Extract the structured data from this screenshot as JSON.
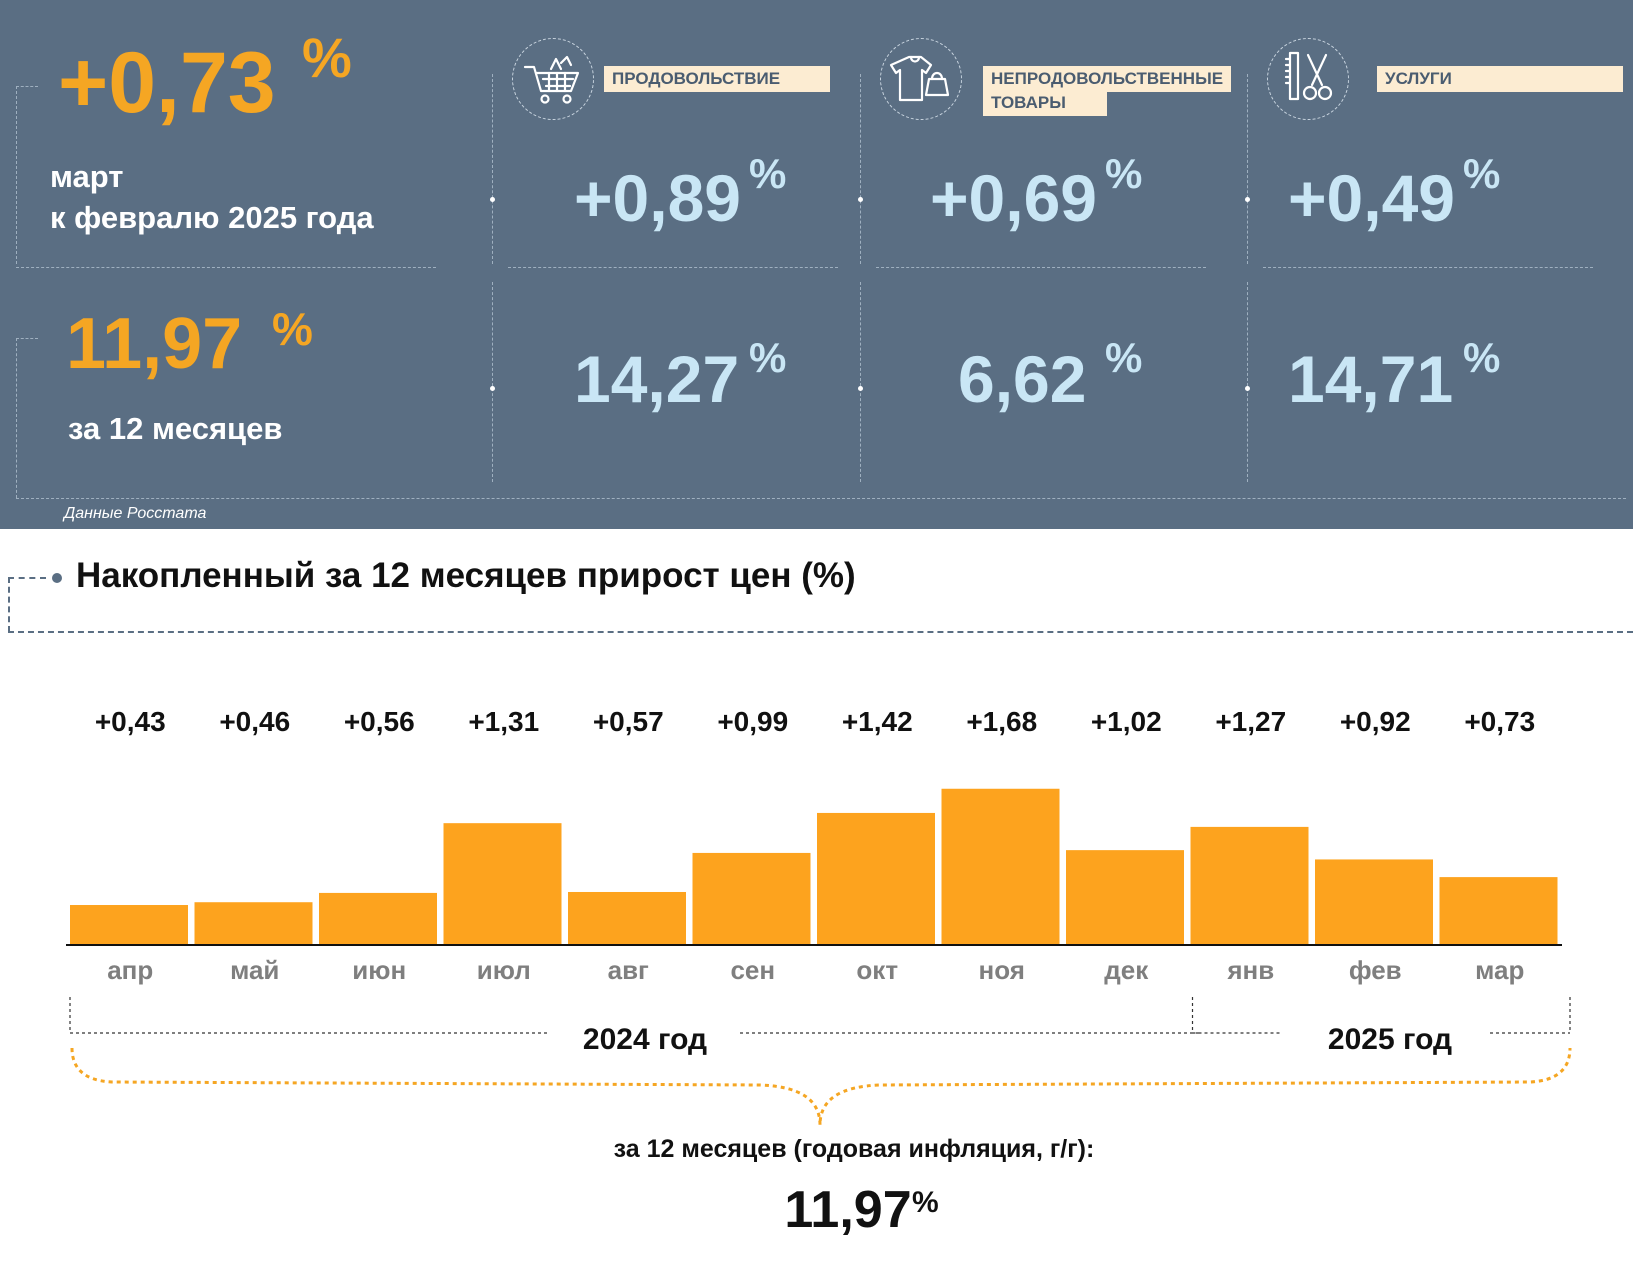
{
  "header": {
    "monthly": {
      "value": "+0,73",
      "unit": "%",
      "period_line1": "март",
      "period_line2": "к февралю 2025 года"
    },
    "annual": {
      "value": "11,97",
      "unit": "%",
      "period": "за 12 месяцев"
    },
    "source": "Данные Росстата"
  },
  "categories": [
    {
      "label": "ПРОДОВОЛЬСТВИЕ",
      "icon": "shopping-cart-icon",
      "monthly": "+0,89",
      "annual": "14,27",
      "unit": "%"
    },
    {
      "label_line1": "НЕПРОДОВОЛЬСТВЕННЫЕ",
      "label_line2": "ТОВАРЫ",
      "icon": "clothes-bag-icon",
      "monthly": "+0,69",
      "annual": "6,62",
      "unit": "%"
    },
    {
      "label": "УСЛУГИ",
      "icon": "comb-scissors-icon",
      "monthly": "+0,49",
      "annual": "14,71",
      "unit": "%"
    }
  ],
  "chart_data": {
    "type": "bar",
    "title": "Накопленный за 12 месяцев прирост цен (%)",
    "categories": [
      "апр",
      "май",
      "июн",
      "июл",
      "авг",
      "сен",
      "окт",
      "ноя",
      "дек",
      "янв",
      "фев",
      "мар"
    ],
    "values": [
      0.43,
      0.46,
      0.56,
      1.31,
      0.57,
      0.99,
      1.42,
      1.68,
      1.02,
      1.27,
      0.92,
      0.73
    ],
    "value_labels": [
      "+0,43",
      "+0,46",
      "+0,56",
      "+1,31",
      "+0,57",
      "+0,99",
      "+1,42",
      "+1,68",
      "+1,02",
      "+1,27",
      "+0,92",
      "+0,73"
    ],
    "years": [
      {
        "label": "2024 год",
        "months": 9
      },
      {
        "label": "2025 год",
        "months": 3
      }
    ],
    "summary_label": "за 12 месяцев (годовая инфляция, г/г):",
    "summary_value": "11,97",
    "summary_unit": "%",
    "bar_color": "#fda31e"
  },
  "colors": {
    "panel": "#5a6e83",
    "accent_orange": "#f5a623",
    "light_blue": "#c9e6f5",
    "label_bg": "#fcecd2"
  }
}
